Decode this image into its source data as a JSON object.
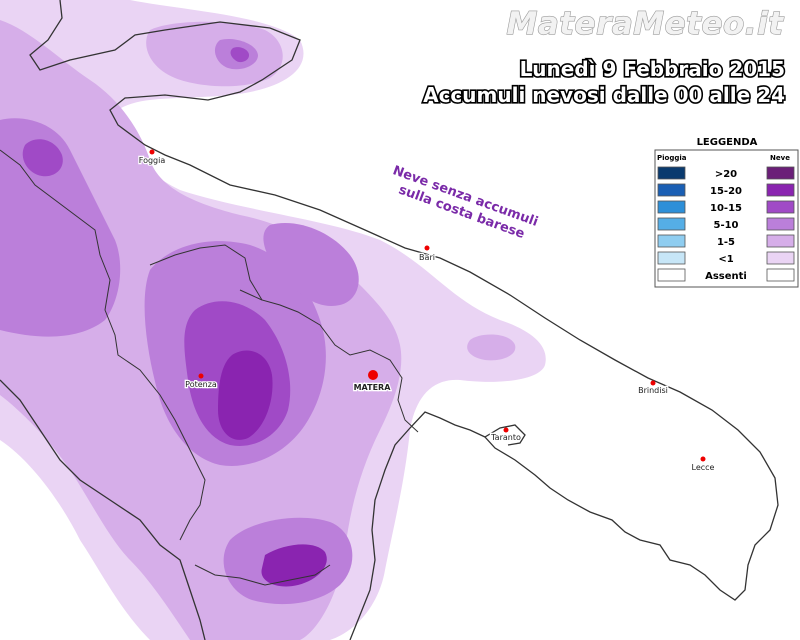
{
  "header": {
    "brand": "MateraMeteo.it",
    "date_title": "Lunedì 9 Febbraio 2015",
    "subtitle": "Accumuli nevosi dalle 00 alle 24"
  },
  "annotation": {
    "line1": "Neve senza accumuli",
    "line2": "sulla costa barese"
  },
  "legend": {
    "title": "LEGGENDA",
    "rain_header": "Pioggia",
    "snow_header": "Neve",
    "rows": [
      {
        "label": ">20",
        "rain_color": "#0a3a6e",
        "snow_color": "#6b1f78"
      },
      {
        "label": "15-20",
        "rain_color": "#1a5fb4",
        "snow_color": "#8a24b0"
      },
      {
        "label": "10-15",
        "rain_color": "#2d8fd8",
        "snow_color": "#a04ac6"
      },
      {
        "label": "5-10",
        "rain_color": "#55aee6",
        "snow_color": "#bb7fda"
      },
      {
        "label": "1-5",
        "rain_color": "#8fcdf0",
        "snow_color": "#d6aee9"
      },
      {
        "label": "<1",
        "rain_color": "#c7e6f7",
        "snow_color": "#ead4f4"
      },
      {
        "label": "Assenti",
        "rain_color": "#ffffff",
        "snow_color": "#ffffff"
      }
    ]
  },
  "cities": {
    "foggia": "Foggia",
    "bari": "Bari",
    "potenza": "Potenza",
    "matera": "MATERA",
    "taranto": "Taranto",
    "brindisi": "Brindisi",
    "lecce": "Lecce"
  }
}
